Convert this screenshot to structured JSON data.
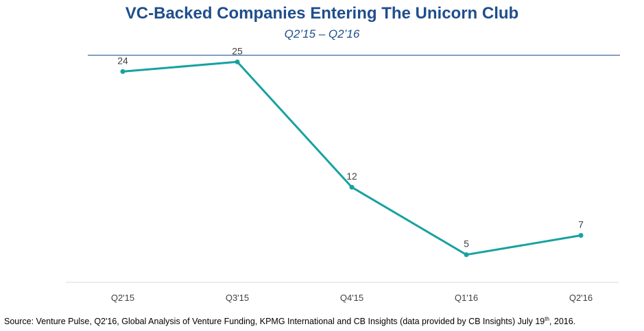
{
  "chart_data": {
    "type": "line",
    "title": "VC-Backed Companies Entering The Unicorn Club",
    "subtitle": "Q2’15 – Q2’16",
    "categories": [
      "Q2'15",
      "Q3'15",
      "Q4'15",
      "Q1'16",
      "Q2'16"
    ],
    "series": [
      {
        "values": [
          24,
          25,
          12,
          5,
          7
        ]
      }
    ],
    "data_labels": [
      "24",
      "25",
      "12",
      "5",
      "7"
    ],
    "ylim": [
      0,
      30
    ],
    "grid": false,
    "legend": "none",
    "line_color": "#17a2a0",
    "axis_color": "#d9d9d9"
  },
  "source": {
    "pre": "Source: Venture Pulse, Q2'16, Global Analysis of Venture Funding, KPMG International and CB Insights (data provided by CB Insights) July 19",
    "sup": "th",
    "post": ", 2016."
  },
  "colors": {
    "title": "#1f4e8c",
    "rule": "#1f4e8c"
  }
}
